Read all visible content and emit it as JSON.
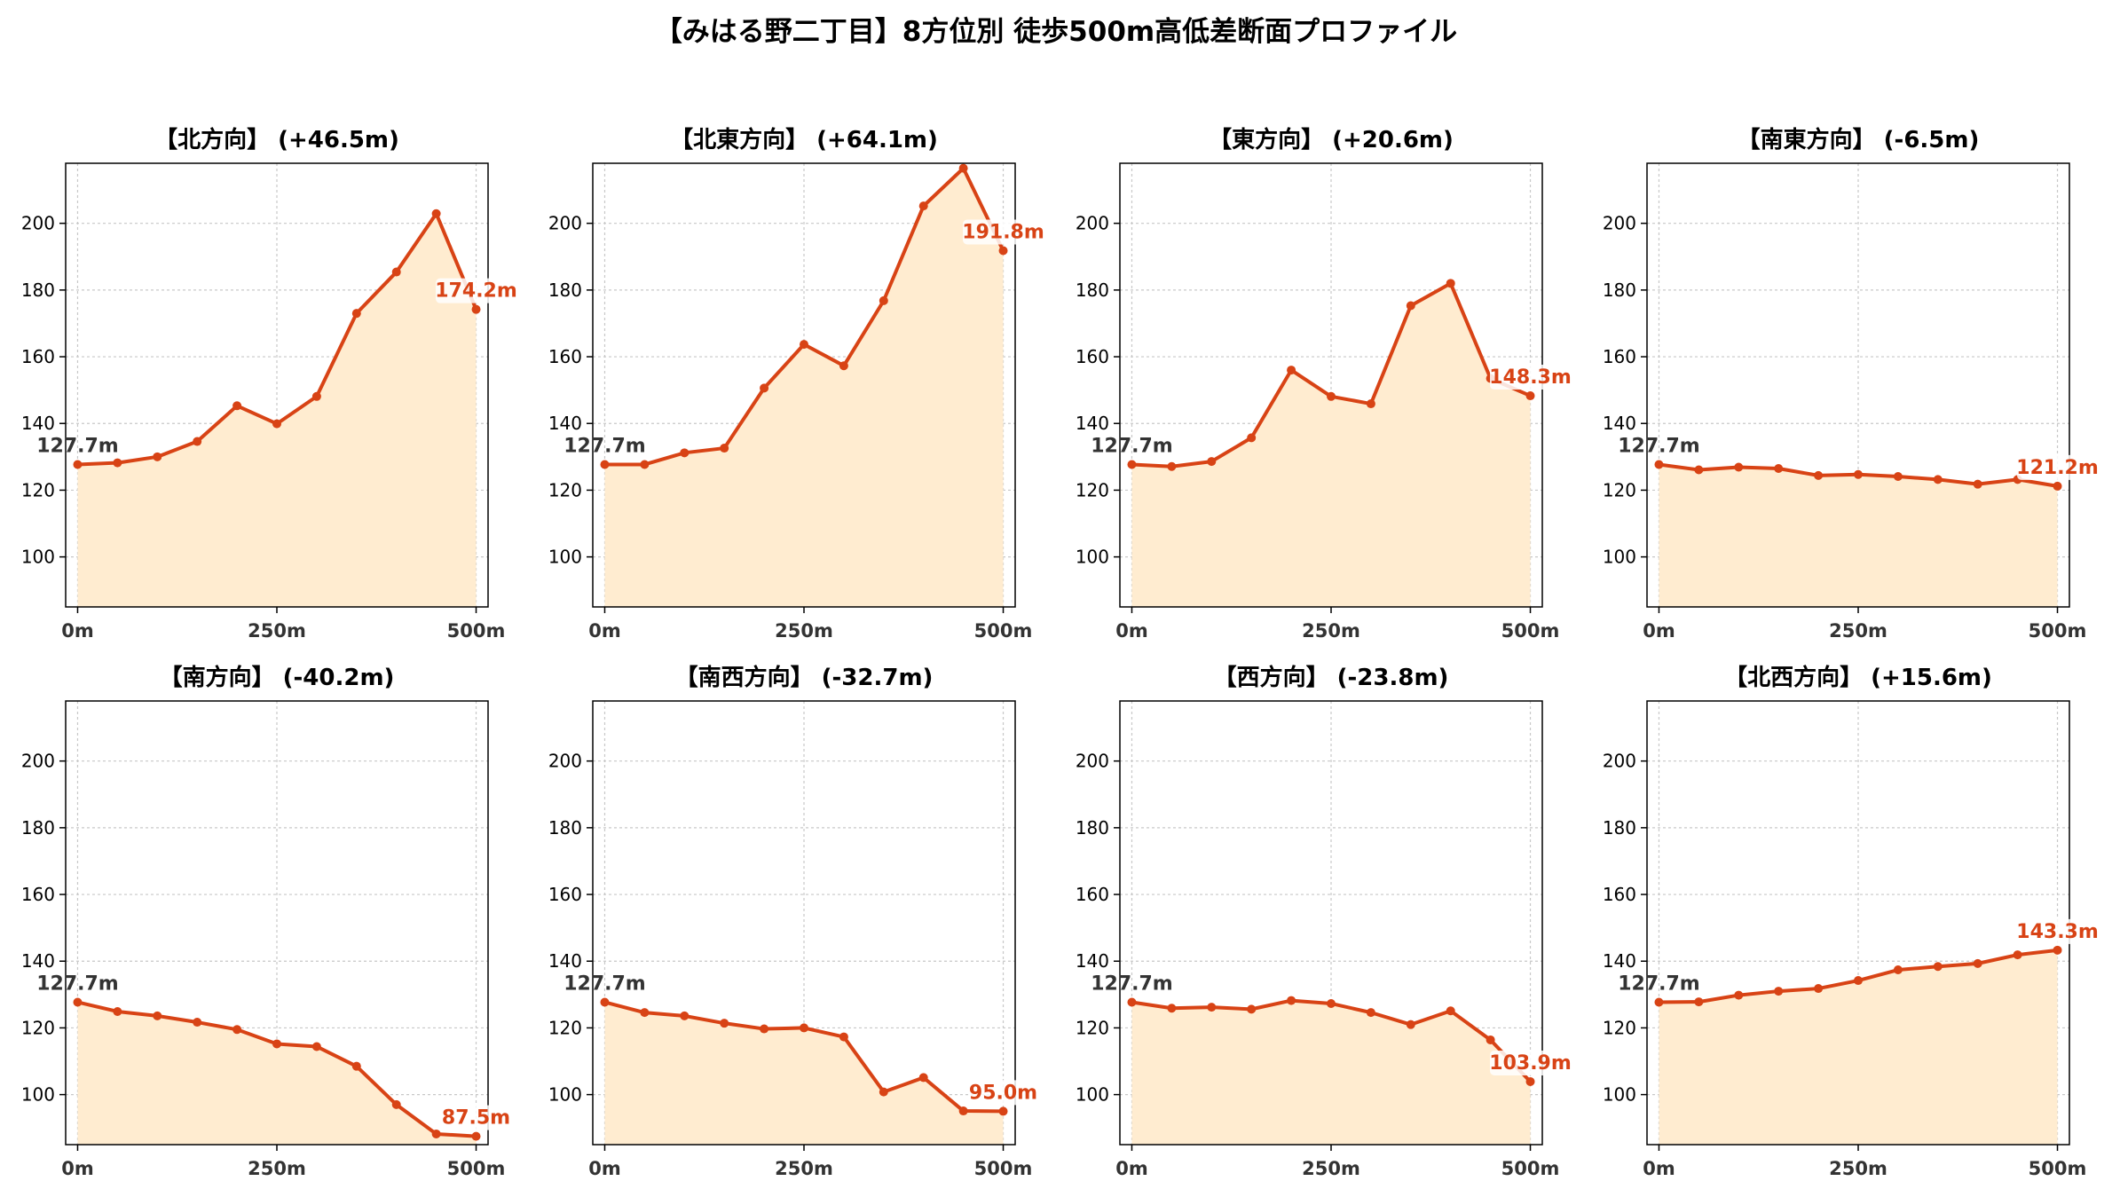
{
  "title": "【みはる野二丁目】8方位別 徒歩500m高低差断面プロファイル",
  "colors": {
    "line": "#d84315",
    "fill": "#ffecd0",
    "start_label": "#333333",
    "end_label": "#d84315",
    "grid": "#c8c8c8",
    "axis": "#000000"
  },
  "chart_data": [
    {
      "type": "area",
      "title": "【北方向】 (+46.5m)",
      "x": [
        0,
        50,
        100,
        150,
        200,
        250,
        300,
        350,
        400,
        450,
        500
      ],
      "y": [
        127.7,
        128.2,
        130.0,
        134.6,
        145.3,
        139.9,
        148.1,
        173.0,
        185.4,
        202.9,
        174.2
      ],
      "start_label": "127.7m",
      "end_label": "174.2m",
      "xlim": [
        -15,
        515
      ],
      "ylim": [
        85,
        218
      ],
      "xticks": [
        "0m",
        "250m",
        "500m"
      ],
      "yticks": [
        "100",
        "120",
        "140",
        "160",
        "180",
        "200"
      ],
      "grid": true
    },
    {
      "type": "area",
      "title": "【北東方向】 (+64.1m)",
      "x": [
        0,
        50,
        100,
        150,
        200,
        250,
        300,
        350,
        400,
        450,
        500
      ],
      "y": [
        127.7,
        127.7,
        131.2,
        132.6,
        150.6,
        163.7,
        157.3,
        176.8,
        205.2,
        216.5,
        191.8
      ],
      "start_label": "127.7m",
      "end_label": "191.8m",
      "xlim": [
        -15,
        515
      ],
      "ylim": [
        85,
        218
      ],
      "xticks": [
        "0m",
        "250m",
        "500m"
      ],
      "yticks": [
        "100",
        "120",
        "140",
        "160",
        "180",
        "200"
      ],
      "grid": true
    },
    {
      "type": "area",
      "title": "【東方向】 (+20.6m)",
      "x": [
        0,
        50,
        100,
        150,
        200,
        250,
        300,
        350,
        400,
        450,
        500
      ],
      "y": [
        127.7,
        127.1,
        128.6,
        135.7,
        156.0,
        148.1,
        145.9,
        175.3,
        182.0,
        153.5,
        148.3
      ],
      "start_label": "127.7m",
      "end_label": "148.3m",
      "xlim": [
        -15,
        515
      ],
      "ylim": [
        85,
        218
      ],
      "xticks": [
        "0m",
        "250m",
        "500m"
      ],
      "yticks": [
        "100",
        "120",
        "140",
        "160",
        "180",
        "200"
      ],
      "grid": true
    },
    {
      "type": "area",
      "title": "【南東方向】 (-6.5m)",
      "x": [
        0,
        50,
        100,
        150,
        200,
        250,
        300,
        350,
        400,
        450,
        500
      ],
      "y": [
        127.7,
        126.1,
        126.9,
        126.5,
        124.4,
        124.7,
        124.1,
        123.2,
        121.8,
        123.2,
        121.2
      ],
      "start_label": "127.7m",
      "end_label": "121.2m",
      "xlim": [
        -15,
        515
      ],
      "ylim": [
        85,
        218
      ],
      "xticks": [
        "0m",
        "250m",
        "500m"
      ],
      "yticks": [
        "100",
        "120",
        "140",
        "160",
        "180",
        "200"
      ],
      "grid": true
    },
    {
      "type": "area",
      "title": "【南方向】 (-40.2m)",
      "x": [
        0,
        50,
        100,
        150,
        200,
        250,
        300,
        350,
        400,
        450,
        500
      ],
      "y": [
        127.7,
        124.9,
        123.6,
        121.7,
        119.5,
        115.2,
        114.4,
        108.5,
        97.0,
        88.2,
        87.5
      ],
      "start_label": "127.7m",
      "end_label": "87.5m",
      "xlim": [
        -15,
        515
      ],
      "ylim": [
        85,
        218
      ],
      "xticks": [
        "0m",
        "250m",
        "500m"
      ],
      "yticks": [
        "100",
        "120",
        "140",
        "160",
        "180",
        "200"
      ],
      "grid": true
    },
    {
      "type": "area",
      "title": "【南西方向】 (-32.7m)",
      "x": [
        0,
        50,
        100,
        150,
        200,
        250,
        300,
        350,
        400,
        450,
        500
      ],
      "y": [
        127.7,
        124.6,
        123.6,
        121.4,
        119.7,
        120.0,
        117.3,
        100.8,
        105.1,
        95.1,
        95.0
      ],
      "start_label": "127.7m",
      "end_label": "95.0m",
      "xlim": [
        -15,
        515
      ],
      "ylim": [
        85,
        218
      ],
      "xticks": [
        "0m",
        "250m",
        "500m"
      ],
      "yticks": [
        "100",
        "120",
        "140",
        "160",
        "180",
        "200"
      ],
      "grid": true
    },
    {
      "type": "area",
      "title": "【西方向】 (-23.8m)",
      "x": [
        0,
        50,
        100,
        150,
        200,
        250,
        300,
        350,
        400,
        450,
        500
      ],
      "y": [
        127.7,
        125.9,
        126.2,
        125.6,
        128.2,
        127.3,
        124.6,
        121.0,
        125.1,
        116.4,
        103.9
      ],
      "start_label": "127.7m",
      "end_label": "103.9m",
      "xlim": [
        -15,
        515
      ],
      "ylim": [
        85,
        218
      ],
      "xticks": [
        "0m",
        "250m",
        "500m"
      ],
      "yticks": [
        "100",
        "120",
        "140",
        "160",
        "180",
        "200"
      ],
      "grid": true
    },
    {
      "type": "area",
      "title": "【北西方向】 (+15.6m)",
      "x": [
        0,
        50,
        100,
        150,
        200,
        250,
        300,
        350,
        400,
        450,
        500
      ],
      "y": [
        127.7,
        127.8,
        129.8,
        131.0,
        131.8,
        134.2,
        137.4,
        138.4,
        139.3,
        141.9,
        143.3
      ],
      "start_label": "127.7m",
      "end_label": "143.3m",
      "xlim": [
        -15,
        515
      ],
      "ylim": [
        85,
        218
      ],
      "xticks": [
        "0m",
        "250m",
        "500m"
      ],
      "yticks": [
        "100",
        "120",
        "140",
        "160",
        "180",
        "200"
      ],
      "grid": true
    }
  ]
}
